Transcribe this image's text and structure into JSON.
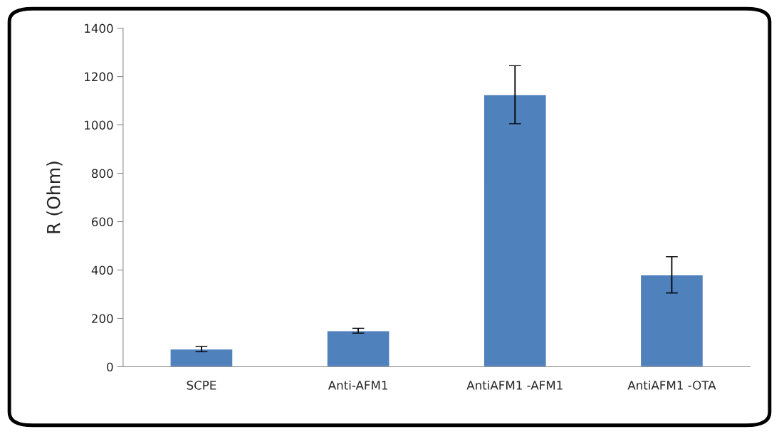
{
  "chart_data": {
    "type": "bar",
    "ylabel": "R (Ohm)",
    "categories": [
      "SCPE",
      "Anti-AFM1",
      "AntiAFM1 -AFM1",
      "AntiAFM1 -OTA"
    ],
    "values": [
      73,
      149,
      1125,
      380
    ],
    "errors": [
      11,
      10,
      120,
      75
    ],
    "color": "#4f81bd",
    "ylim": [
      0,
      1400
    ],
    "yticks": [
      0,
      200,
      400,
      600,
      800,
      1000,
      1200,
      1400
    ],
    "grid": false,
    "legend": false
  }
}
